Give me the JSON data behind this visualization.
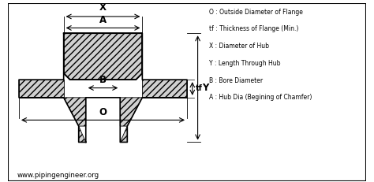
{
  "bg_color": "#ffffff",
  "legend_lines": [
    "O : Outside Diameter of Flange",
    "tf : Thickness of Flange (Min.)",
    "X : Diameter of Hub",
    "Y : Length Through Hub",
    "B : Bore Diameter",
    "A : Hub Dia (Begining of Chamfer)"
  ],
  "watermark": "www.pipingengineer.org"
}
